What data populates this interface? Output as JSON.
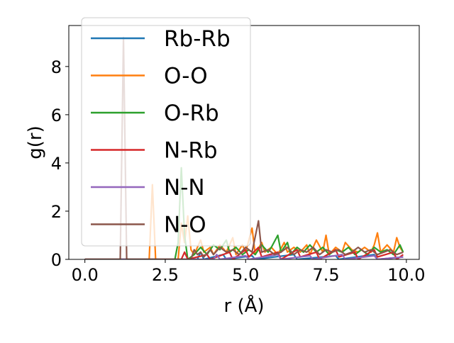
{
  "chart_data": {
    "type": "line",
    "xlabel": "r (Å)",
    "ylabel": "g(r)",
    "xlim": [
      -0.5,
      10.4
    ],
    "ylim": [
      0,
      9.7
    ],
    "xticks": [
      {
        "value": 0.0,
        "label": "0.0"
      },
      {
        "value": 2.5,
        "label": "2.5"
      },
      {
        "value": 5.0,
        "label": "5.0"
      },
      {
        "value": 7.5,
        "label": "7.5"
      },
      {
        "value": 10.0,
        "label": "10.0"
      }
    ],
    "yticks": [
      {
        "value": 0,
        "label": "0"
      },
      {
        "value": 2,
        "label": "2"
      },
      {
        "value": 4,
        "label": "4"
      },
      {
        "value": 6,
        "label": "6"
      },
      {
        "value": 8,
        "label": "8"
      }
    ],
    "legend_position": "upper-left",
    "series": [
      {
        "name": "Rb-Rb",
        "color": "#1f77b4",
        "points": [
          [
            0,
            0
          ],
          [
            3.5,
            0
          ],
          [
            3.6,
            0.3
          ],
          [
            3.7,
            0
          ],
          [
            4.3,
            0.2
          ],
          [
            4.4,
            0
          ],
          [
            5.2,
            0.15
          ],
          [
            5.3,
            0
          ],
          [
            6.5,
            0.2
          ],
          [
            6.6,
            0
          ],
          [
            7.8,
            0.15
          ],
          [
            7.9,
            0
          ],
          [
            9.0,
            0.2
          ],
          [
            9.1,
            0
          ],
          [
            9.9,
            0.1
          ]
        ]
      },
      {
        "name": "O-O",
        "color": "#ff7f0e",
        "points": [
          [
            0,
            0
          ],
          [
            2.0,
            0
          ],
          [
            2.1,
            3.1
          ],
          [
            2.2,
            0
          ],
          [
            2.9,
            0
          ],
          [
            3.0,
            1.5
          ],
          [
            3.1,
            0.7
          ],
          [
            3.2,
            1.8
          ],
          [
            3.3,
            0.4
          ],
          [
            3.4,
            0.2
          ],
          [
            3.6,
            0.8
          ],
          [
            3.7,
            0.3
          ],
          [
            3.9,
            0.5
          ],
          [
            4.0,
            0.2
          ],
          [
            4.2,
            0.6
          ],
          [
            4.4,
            0.3
          ],
          [
            4.6,
            0.9
          ],
          [
            4.7,
            0.2
          ],
          [
            4.9,
            0.6
          ],
          [
            5.0,
            0.3
          ],
          [
            5.2,
            1.3
          ],
          [
            5.3,
            0.2
          ],
          [
            5.5,
            0.7
          ],
          [
            5.6,
            0.3
          ],
          [
            5.8,
            0.5
          ],
          [
            6.0,
            0.2
          ],
          [
            6.2,
            0.7
          ],
          [
            6.3,
            0.3
          ],
          [
            6.5,
            0.5
          ],
          [
            6.7,
            0.3
          ],
          [
            6.9,
            0.6
          ],
          [
            7.0,
            0.2
          ],
          [
            7.2,
            0.8
          ],
          [
            7.4,
            0.3
          ],
          [
            7.5,
            1.0
          ],
          [
            7.6,
            0.2
          ],
          [
            7.8,
            0.5
          ],
          [
            8.0,
            0.3
          ],
          [
            8.1,
            0.7
          ],
          [
            8.3,
            0.4
          ],
          [
            8.5,
            0.3
          ],
          [
            8.7,
            0.5
          ],
          [
            8.9,
            0.3
          ],
          [
            9.0,
            0.6
          ],
          [
            9.1,
            1.1
          ],
          [
            9.2,
            0.3
          ],
          [
            9.4,
            0.6
          ],
          [
            9.6,
            0.3
          ],
          [
            9.7,
            0.9
          ],
          [
            9.8,
            0.5
          ],
          [
            9.9,
            0.3
          ]
        ]
      },
      {
        "name": "O-Rb",
        "color": "#2ca02c",
        "points": [
          [
            0,
            0
          ],
          [
            2.8,
            0
          ],
          [
            2.9,
            0.7
          ],
          [
            3.0,
            3.8
          ],
          [
            3.1,
            1.0
          ],
          [
            3.2,
            0
          ],
          [
            3.4,
            0.2
          ],
          [
            3.6,
            0.5
          ],
          [
            3.8,
            0.2
          ],
          [
            4.0,
            0.6
          ],
          [
            4.2,
            0.4
          ],
          [
            4.4,
            0.8
          ],
          [
            4.5,
            0.3
          ],
          [
            4.7,
            0.5
          ],
          [
            4.9,
            0.2
          ],
          [
            5.1,
            0.4
          ],
          [
            5.3,
            0.2
          ],
          [
            5.5,
            0.6
          ],
          [
            5.7,
            0.3
          ],
          [
            5.8,
            0.5
          ],
          [
            6.0,
            1.0
          ],
          [
            6.1,
            0.3
          ],
          [
            6.3,
            0.7
          ],
          [
            6.4,
            0.2
          ],
          [
            6.6,
            0.5
          ],
          [
            6.8,
            0.3
          ],
          [
            7.0,
            0.6
          ],
          [
            7.2,
            0.3
          ],
          [
            7.4,
            0.5
          ],
          [
            7.6,
            0.2
          ],
          [
            7.8,
            0.4
          ],
          [
            8.0,
            0.3
          ],
          [
            8.2,
            0.5
          ],
          [
            8.4,
            0.2
          ],
          [
            8.6,
            0.4
          ],
          [
            8.8,
            0.2
          ],
          [
            9.0,
            0.5
          ],
          [
            9.2,
            0.3
          ],
          [
            9.4,
            0.4
          ],
          [
            9.6,
            0.2
          ],
          [
            9.8,
            0.6
          ],
          [
            9.9,
            0.3
          ]
        ]
      },
      {
        "name": "N-Rb",
        "color": "#d62728",
        "points": [
          [
            0,
            0
          ],
          [
            3.0,
            0
          ],
          [
            3.1,
            0.3
          ],
          [
            3.2,
            0
          ],
          [
            3.8,
            0.2
          ],
          [
            3.9,
            0
          ],
          [
            4.5,
            0.3
          ],
          [
            4.6,
            0
          ],
          [
            5.0,
            0.4
          ],
          [
            5.1,
            0.1
          ],
          [
            5.4,
            0.5
          ],
          [
            5.5,
            0.1
          ],
          [
            6.0,
            0.3
          ],
          [
            6.1,
            0
          ],
          [
            6.6,
            0.4
          ],
          [
            6.7,
            0.1
          ],
          [
            7.2,
            0.3
          ],
          [
            7.3,
            0
          ],
          [
            7.8,
            0.4
          ],
          [
            7.9,
            0.1
          ],
          [
            8.4,
            0.3
          ],
          [
            8.5,
            0
          ],
          [
            9.0,
            0.4
          ],
          [
            9.1,
            0.1
          ],
          [
            9.6,
            0.3
          ],
          [
            9.7,
            0
          ],
          [
            9.9,
            0.2
          ]
        ]
      },
      {
        "name": "N-N",
        "color": "#9467bd",
        "points": [
          [
            0,
            0
          ],
          [
            4.0,
            0
          ],
          [
            4.1,
            0.2
          ],
          [
            4.2,
            0
          ],
          [
            5.0,
            0.15
          ],
          [
            5.1,
            0
          ],
          [
            6.0,
            0.2
          ],
          [
            6.1,
            0
          ],
          [
            7.0,
            0.15
          ],
          [
            7.1,
            0
          ],
          [
            8.0,
            0.2
          ],
          [
            8.1,
            0
          ],
          [
            9.0,
            0.15
          ],
          [
            9.1,
            0
          ],
          [
            9.9,
            0.1
          ]
        ]
      },
      {
        "name": "N-O",
        "color": "#8c564b",
        "points": [
          [
            0,
            0
          ],
          [
            1.1,
            0
          ],
          [
            1.2,
            9.2
          ],
          [
            1.3,
            0
          ],
          [
            3.3,
            0
          ],
          [
            3.4,
            0.4
          ],
          [
            3.5,
            0.2
          ],
          [
            3.6,
            0.3
          ],
          [
            3.7,
            0.1
          ],
          [
            3.9,
            0.4
          ],
          [
            4.0,
            0.2
          ],
          [
            4.2,
            0.5
          ],
          [
            4.4,
            0.3
          ],
          [
            4.6,
            0.4
          ],
          [
            4.8,
            0.2
          ],
          [
            5.0,
            0.5
          ],
          [
            5.2,
            0.3
          ],
          [
            5.4,
            1.6
          ],
          [
            5.5,
            0.3
          ],
          [
            5.7,
            0.4
          ],
          [
            5.9,
            0.2
          ],
          [
            6.1,
            0.3
          ],
          [
            6.3,
            0.5
          ],
          [
            6.5,
            0.2
          ],
          [
            6.7,
            0.4
          ],
          [
            6.9,
            0.3
          ],
          [
            7.1,
            0.5
          ],
          [
            7.3,
            0.2
          ],
          [
            7.5,
            0.4
          ],
          [
            7.7,
            0.3
          ],
          [
            7.9,
            0.4
          ],
          [
            8.1,
            0.2
          ],
          [
            8.3,
            0.3
          ],
          [
            8.5,
            0.5
          ],
          [
            8.7,
            0.3
          ],
          [
            8.9,
            0.4
          ],
          [
            9.1,
            0.2
          ],
          [
            9.3,
            0.3
          ],
          [
            9.5,
            0.4
          ],
          [
            9.7,
            0.2
          ],
          [
            9.9,
            0.3
          ]
        ]
      }
    ]
  }
}
